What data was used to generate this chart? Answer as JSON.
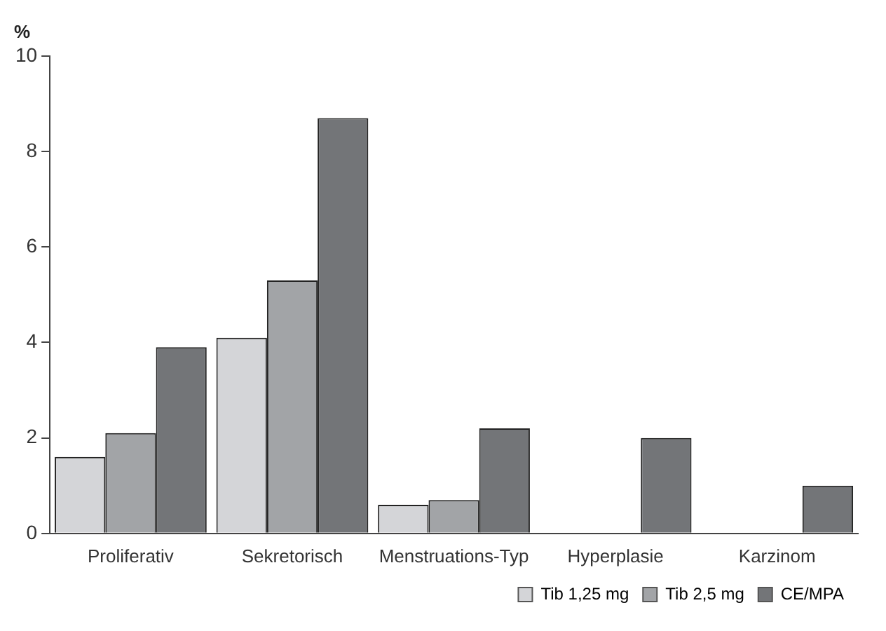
{
  "chart_data": {
    "type": "bar",
    "ylabel": "%",
    "categories": [
      "Proliferativ",
      "Sekretorisch",
      "Menstruations-Typ",
      "Hyperplasie",
      "Karzinom"
    ],
    "series": [
      {
        "name": "Tib 1,25 mg",
        "color": "#d4d5d8",
        "values": [
          1.6,
          4.1,
          0.6,
          0,
          0
        ]
      },
      {
        "name": "Tib 2,5 mg",
        "color": "#a2a4a7",
        "values": [
          2.1,
          5.3,
          0.7,
          0,
          0
        ]
      },
      {
        "name": "CE/MPA",
        "color": "#737578",
        "values": [
          3.9,
          8.7,
          2.2,
          2.0,
          1.0
        ]
      }
    ],
    "ylim": [
      0,
      10
    ],
    "yticks": [
      0,
      2,
      4,
      6,
      8,
      10
    ],
    "grid": false,
    "legend": "bottom right"
  }
}
